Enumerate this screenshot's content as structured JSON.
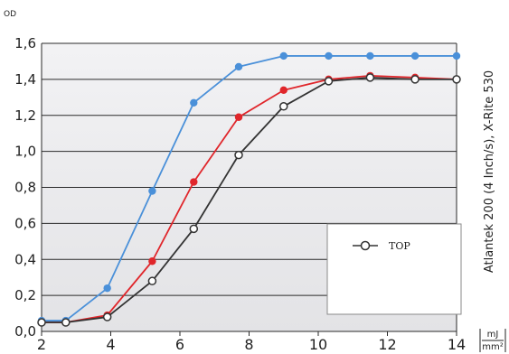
{
  "chart_data": {
    "type": "line",
    "ylabel": "OD",
    "xlabel_unit_top": "mJ",
    "xlabel_unit_bottom": "mm²",
    "side_label": "Atlantek 200 (4 Inch/s), X-Rite 530",
    "xlim": [
      2,
      14
    ],
    "ylim": [
      0,
      1.6
    ],
    "x_ticks": [
      2,
      4,
      6,
      8,
      10,
      12,
      14
    ],
    "x_tick_labels": [
      "2",
      "4",
      "6",
      "8",
      "10",
      "12",
      "14"
    ],
    "y_ticks": [
      0,
      0.2,
      0.4,
      0.6,
      0.8,
      1.0,
      1.2,
      1.4,
      1.6
    ],
    "y_tick_labels": [
      "0,0",
      "0,2",
      "0,4",
      "0,6",
      "0,8",
      "1,0",
      "1,2",
      "1,4",
      "1,6"
    ],
    "grid": "horizontal",
    "legend_position": "bottom-right",
    "series": [
      {
        "color": "#4a90d9",
        "marker": "filled",
        "x": [
          2.0,
          2.7,
          3.9,
          5.2,
          6.4,
          7.7,
          9.0,
          10.3,
          11.5,
          12.8,
          14.0
        ],
        "y": [
          0.06,
          0.06,
          0.24,
          0.78,
          1.27,
          1.47,
          1.53,
          1.53,
          1.53,
          1.53,
          1.53
        ]
      },
      {
        "color": "#e0262b",
        "marker": "filled",
        "x": [
          2.0,
          2.7,
          3.9,
          5.2,
          6.4,
          7.7,
          9.0,
          10.3,
          11.5,
          12.8,
          14.0
        ],
        "y": [
          0.05,
          0.05,
          0.09,
          0.39,
          0.83,
          1.19,
          1.34,
          1.4,
          1.42,
          1.41,
          1.4
        ]
      },
      {
        "name": "TOP",
        "color": "#333333",
        "marker": "open",
        "x": [
          2.0,
          2.7,
          3.9,
          5.2,
          6.4,
          7.7,
          9.0,
          10.3,
          11.5,
          12.8,
          14.0
        ],
        "y": [
          0.05,
          0.05,
          0.08,
          0.28,
          0.57,
          0.98,
          1.25,
          1.39,
          1.41,
          1.4,
          1.4
        ]
      }
    ]
  }
}
